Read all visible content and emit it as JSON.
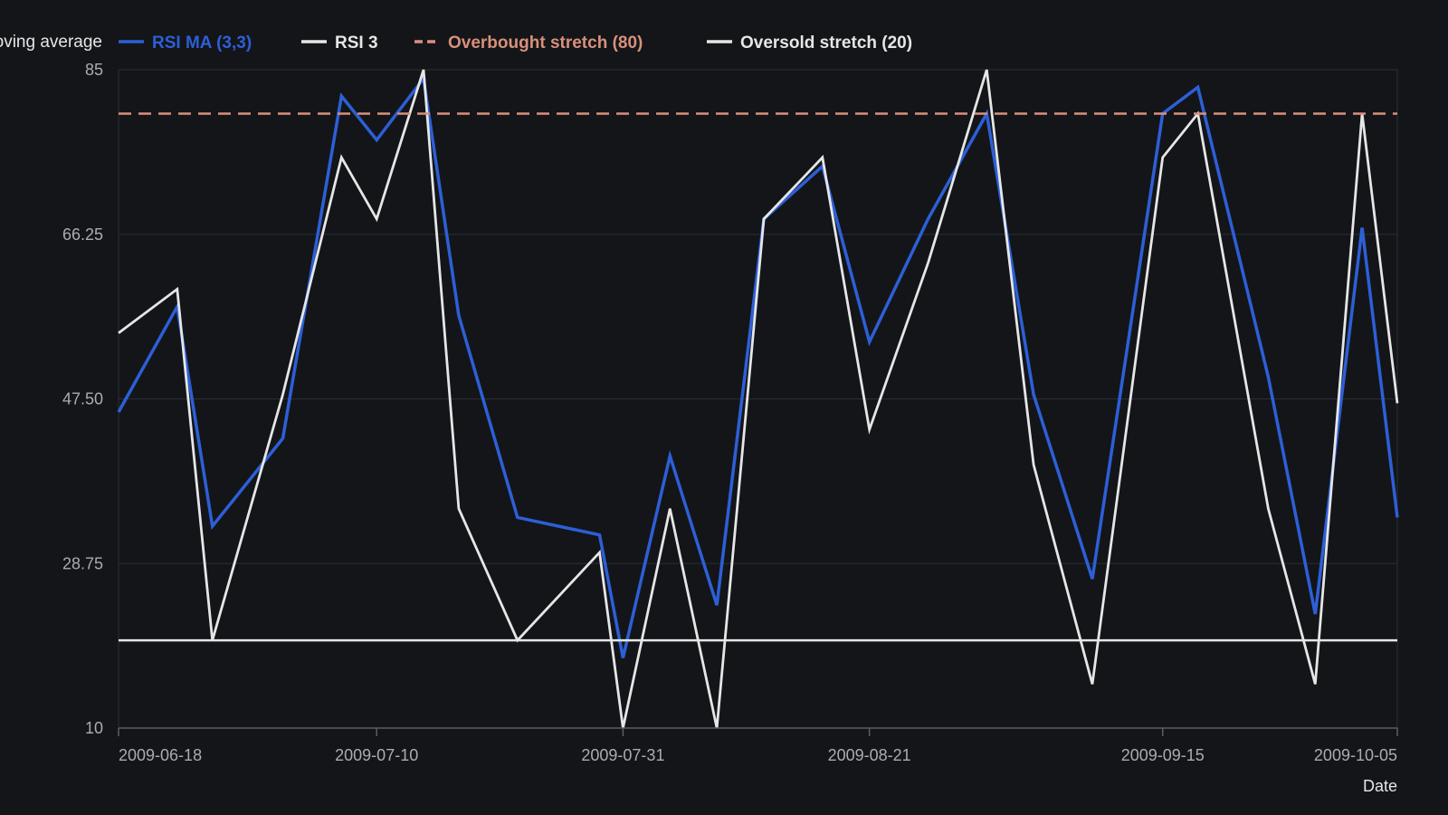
{
  "chart_data": {
    "type": "line",
    "title": "",
    "xlabel": "Date",
    "ylabel": "",
    "ylim": [
      10,
      85
    ],
    "y_ticks": [
      "10",
      "28.75",
      "47.50",
      "66.25",
      "85"
    ],
    "x_ticks": [
      "2009-06-18",
      "2009-07-10",
      "2009-07-31",
      "2009-08-21",
      "2009-09-15",
      "2009-10-05"
    ],
    "x_tick_dates": [
      "2009-06-18",
      "2009-07-10",
      "2009-07-31",
      "2009-08-21",
      "2009-09-15",
      "2009-10-05"
    ],
    "x_range": [
      "2009-06-18",
      "2009-10-05"
    ],
    "grid": true,
    "legend_position": "top",
    "x": [
      "2009-06-18",
      "2009-06-23",
      "2009-06-26",
      "2009-07-02",
      "2009-07-07",
      "2009-07-10",
      "2009-07-14",
      "2009-07-17",
      "2009-07-22",
      "2009-07-29",
      "2009-07-31",
      "2009-08-04",
      "2009-08-08",
      "2009-08-12",
      "2009-08-17",
      "2009-08-21",
      "2009-08-26",
      "2009-08-31",
      "2009-09-04",
      "2009-09-09",
      "2009-09-15",
      "2009-09-18",
      "2009-09-24",
      "2009-09-28",
      "2009-10-02",
      "2009-10-05"
    ],
    "series": [
      {
        "name": "RSI MA (3,3)",
        "color": "#2d5fd6",
        "style": "solid",
        "values": [
          46,
          58,
          33,
          43,
          82,
          77,
          84,
          57,
          34,
          32,
          18,
          41,
          24,
          68,
          74,
          54,
          68,
          80,
          48,
          27,
          80,
          83,
          50,
          23,
          67,
          34
        ]
      },
      {
        "name": "RSI 3",
        "color": "#e6e6e6",
        "style": "solid",
        "values": [
          55,
          60,
          20,
          48,
          75,
          68,
          85,
          35,
          20,
          30,
          10,
          35,
          10,
          68,
          75,
          44,
          63,
          85,
          40,
          15,
          75,
          80,
          35,
          15,
          80,
          47
        ]
      },
      {
        "name": "Overbought stretch (80)",
        "color": "#d9907a",
        "style": "dashed",
        "constant": 80
      },
      {
        "name": "Oversold stretch (20)",
        "color": "#e6e6e6",
        "style": "solid",
        "constant": 20
      }
    ],
    "legend_extra_label": "oving average"
  }
}
